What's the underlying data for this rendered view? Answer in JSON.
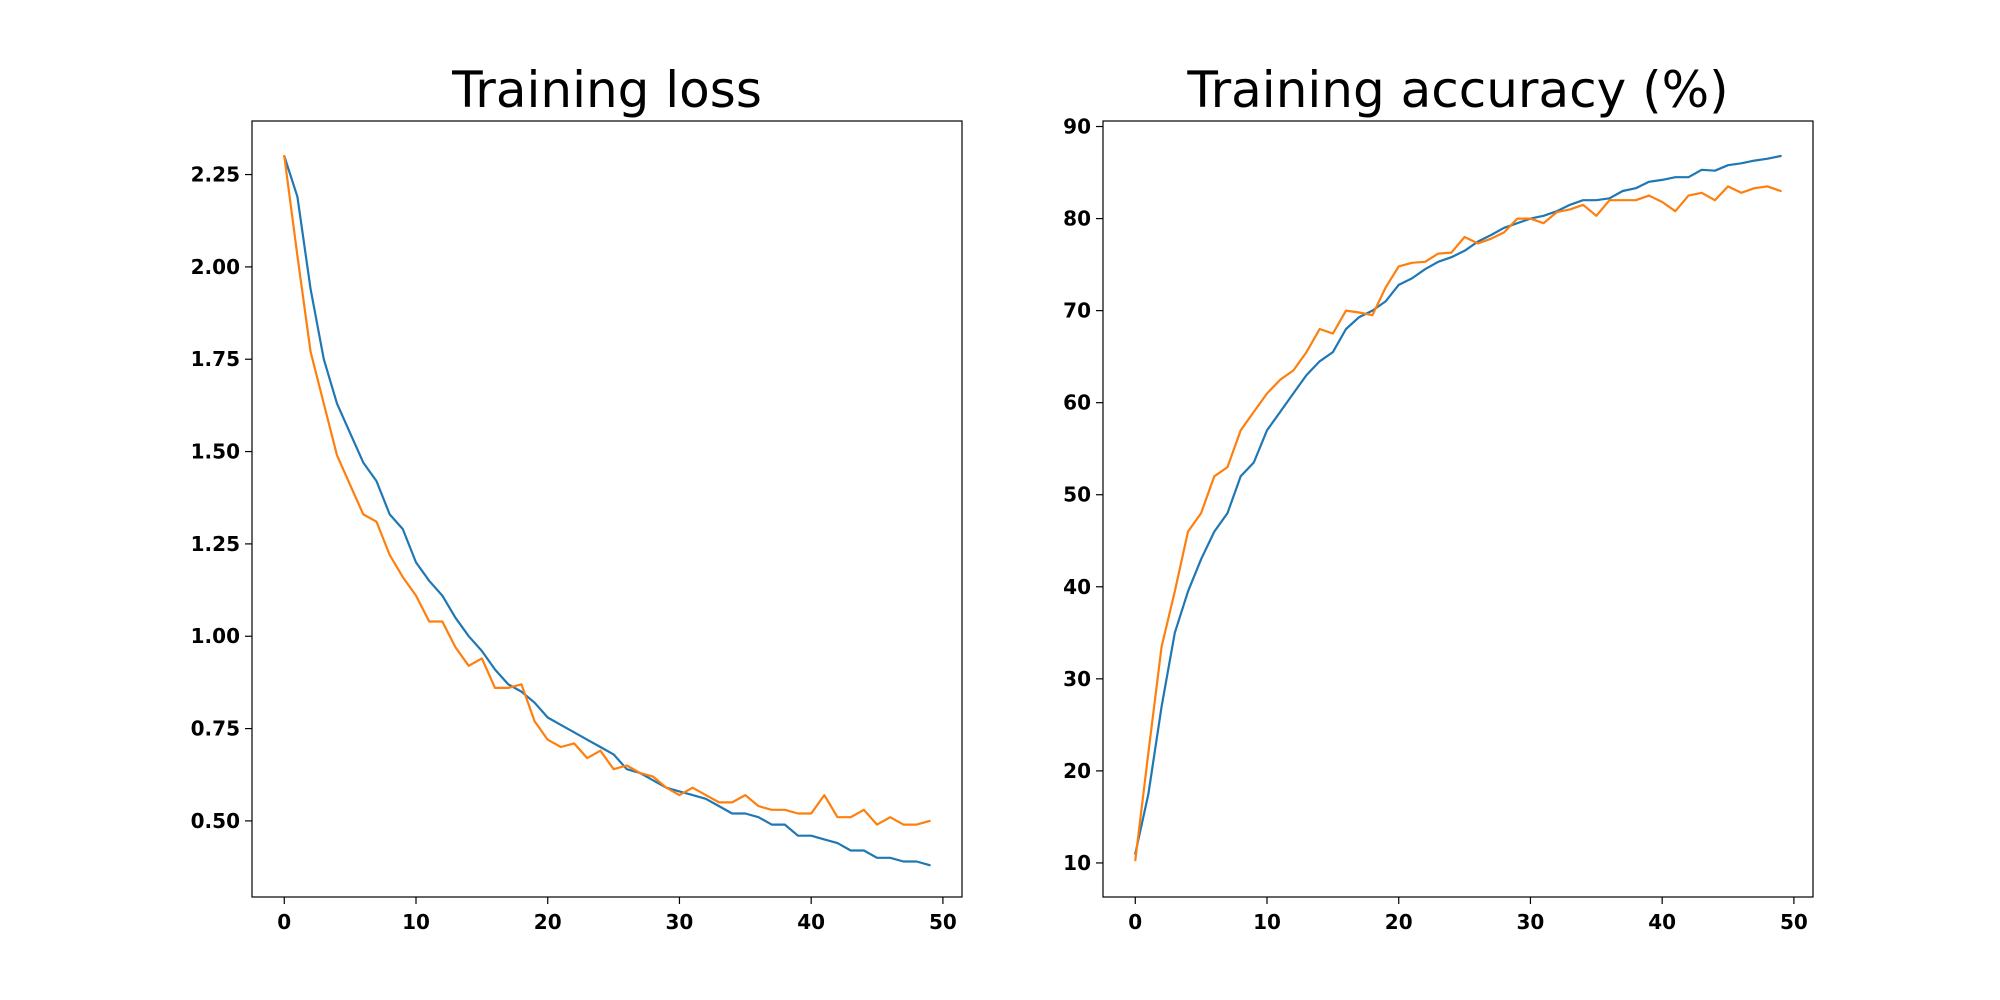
{
  "chart_data": [
    {
      "type": "line",
      "title": "Training loss",
      "xlabel": "",
      "ylabel": "",
      "xlim": [
        -2.45,
        51.45
      ],
      "ylim": [
        0.294,
        2.395
      ],
      "x_ticks": [
        0,
        10,
        20,
        30,
        40,
        50
      ],
      "y_ticks": [
        0.5,
        0.75,
        1.0,
        1.25,
        1.5,
        1.75,
        2.0,
        2.25
      ],
      "y_tick_labels": [
        "0.50",
        "0.75",
        "1.00",
        "1.25",
        "1.50",
        "1.75",
        "2.00",
        "2.25"
      ],
      "grid": false,
      "x": [
        0,
        1,
        2,
        3,
        4,
        5,
        6,
        7,
        8,
        9,
        10,
        11,
        12,
        13,
        14,
        15,
        16,
        17,
        18,
        19,
        20,
        21,
        22,
        23,
        24,
        25,
        26,
        27,
        28,
        29,
        30,
        31,
        32,
        33,
        34,
        35,
        36,
        37,
        38,
        39,
        40,
        41,
        42,
        43,
        44,
        45,
        46,
        47,
        48,
        49
      ],
      "series": [
        {
          "color": "#1f77b4",
          "values": [
            2.3,
            2.19,
            1.94,
            1.75,
            1.63,
            1.55,
            1.47,
            1.42,
            1.33,
            1.29,
            1.2,
            1.15,
            1.11,
            1.05,
            1.0,
            0.96,
            0.91,
            0.87,
            0.85,
            0.82,
            0.78,
            0.76,
            0.74,
            0.72,
            0.7,
            0.68,
            0.64,
            0.63,
            0.61,
            0.59,
            0.58,
            0.57,
            0.56,
            0.54,
            0.52,
            0.52,
            0.51,
            0.49,
            0.49,
            0.46,
            0.46,
            0.45,
            0.44,
            0.42,
            0.42,
            0.4,
            0.4,
            0.39,
            0.39,
            0.38
          ]
        },
        {
          "color": "#ff7f0e",
          "values": [
            2.3,
            2.03,
            1.77,
            1.63,
            1.49,
            1.41,
            1.33,
            1.31,
            1.22,
            1.16,
            1.11,
            1.04,
            1.04,
            0.97,
            0.92,
            0.94,
            0.86,
            0.86,
            0.87,
            0.77,
            0.72,
            0.7,
            0.71,
            0.67,
            0.69,
            0.64,
            0.65,
            0.63,
            0.62,
            0.59,
            0.57,
            0.59,
            0.57,
            0.55,
            0.55,
            0.57,
            0.54,
            0.53,
            0.53,
            0.52,
            0.52,
            0.57,
            0.51,
            0.51,
            0.53,
            0.49,
            0.51,
            0.49,
            0.49,
            0.5
          ]
        }
      ]
    },
    {
      "type": "line",
      "title": "Training accuracy (%)",
      "xlabel": "",
      "ylabel": "",
      "xlim": [
        -2.45,
        51.45
      ],
      "ylim": [
        6.3,
        90.6
      ],
      "x_ticks": [
        0,
        10,
        20,
        30,
        40,
        50
      ],
      "y_ticks": [
        10,
        20,
        30,
        40,
        50,
        60,
        70,
        80,
        90
      ],
      "y_tick_labels": [
        "10",
        "20",
        "30",
        "40",
        "50",
        "60",
        "70",
        "80",
        "90"
      ],
      "grid": false,
      "x": [
        0,
        1,
        2,
        3,
        4,
        5,
        6,
        7,
        8,
        9,
        10,
        11,
        12,
        13,
        14,
        15,
        16,
        17,
        18,
        19,
        20,
        21,
        22,
        23,
        24,
        25,
        26,
        27,
        28,
        29,
        30,
        31,
        32,
        33,
        34,
        35,
        36,
        37,
        38,
        39,
        40,
        41,
        42,
        43,
        44,
        45,
        46,
        47,
        48,
        49
      ],
      "series": [
        {
          "color": "#1f77b4",
          "values": [
            11.0,
            17.5,
            27.0,
            35.0,
            39.5,
            43.0,
            46.0,
            48.0,
            52.0,
            53.5,
            57.0,
            59.0,
            61.0,
            63.0,
            64.5,
            65.5,
            68.0,
            69.3,
            70.0,
            71.0,
            72.8,
            73.5,
            74.5,
            75.3,
            75.8,
            76.5,
            77.5,
            78.2,
            79.0,
            79.5,
            80.0,
            80.3,
            80.8,
            81.5,
            82.0,
            82.0,
            82.2,
            83.0,
            83.3,
            84.0,
            84.2,
            84.5,
            84.5,
            85.3,
            85.2,
            85.8,
            86.0,
            86.3,
            86.5,
            86.8
          ]
        },
        {
          "color": "#ff7f0e",
          "values": [
            10.3,
            22.0,
            33.5,
            39.5,
            46.0,
            48.0,
            52.0,
            53.0,
            57.0,
            59.0,
            61.0,
            62.5,
            63.5,
            65.5,
            68.0,
            67.5,
            70.0,
            69.8,
            69.5,
            72.5,
            74.8,
            75.2,
            75.3,
            76.2,
            76.3,
            78.0,
            77.3,
            77.8,
            78.5,
            80.0,
            80.0,
            79.5,
            80.7,
            81.0,
            81.5,
            80.3,
            82.0,
            82.0,
            82.0,
            82.5,
            81.8,
            80.8,
            82.5,
            82.8,
            82.0,
            83.5,
            82.8,
            83.3,
            83.5,
            83.0
          ]
        }
      ]
    }
  ]
}
